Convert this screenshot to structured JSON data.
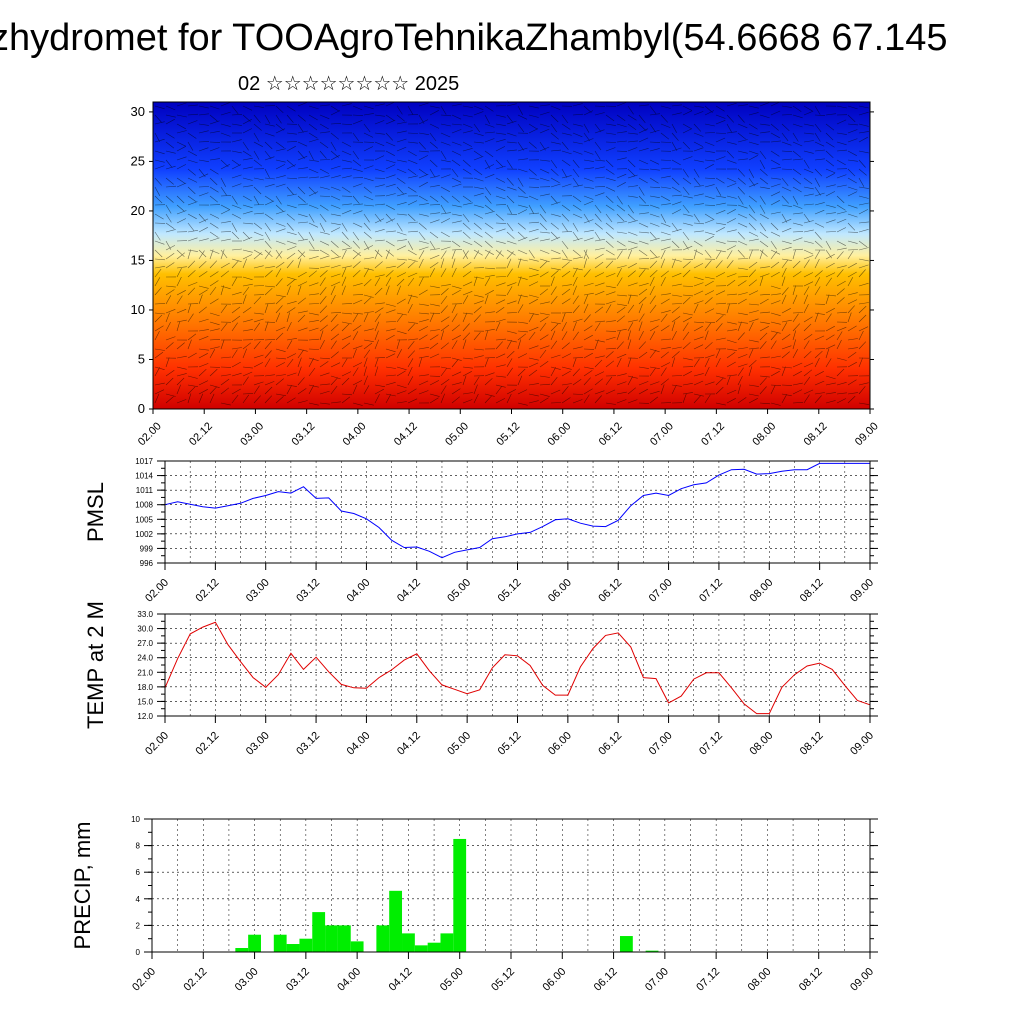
{
  "title": "zhydromet for TOOAgroTehnikaZhambyl(54.6668 67.145",
  "subtitle": "02 ☆☆☆☆☆☆☆☆ 2025",
  "time_ticks": [
    "02.00",
    "02.12",
    "03.00",
    "03.12",
    "04.00",
    "04.12",
    "05.00",
    "05.12",
    "06.00",
    "06.12",
    "07.00",
    "07.12",
    "08.00",
    "08.12",
    "09.00"
  ],
  "chart_data": [
    {
      "type": "heatmap",
      "description_panel": "vertical cross-section",
      "x_ticks": [
        "02.00",
        "02.12",
        "03.00",
        "03.12",
        "04.00",
        "04.12",
        "05.00",
        "05.12",
        "06.00",
        "06.12",
        "07.00",
        "07.12",
        "08.00",
        "08.12",
        "09.00"
      ],
      "ylim": [
        0,
        31
      ],
      "y_ticks": [
        0,
        5,
        10,
        15,
        20,
        25,
        30
      ],
      "colormap": [
        "#d00000",
        "#ff3000",
        "#ff8000",
        "#ffc000",
        "#fff0a0",
        "#c0e8ff",
        "#40a0ff",
        "#1040ff",
        "#0000c0"
      ],
      "grid": false
    },
    {
      "type": "line",
      "ylabel": "PMSL",
      "ylim": [
        996,
        1017
      ],
      "y_ticks": [
        996,
        999,
        1002,
        1005,
        1008,
        1011,
        1014,
        1017
      ],
      "x_ticks": [
        "02.00",
        "02.12",
        "03.00",
        "03.12",
        "04.00",
        "04.12",
        "05.00",
        "05.12",
        "06.00",
        "06.12",
        "07.00",
        "07.12",
        "08.00",
        "08.12",
        "09.00"
      ],
      "color": "#0000ff",
      "x": [
        0,
        0.125,
        0.25,
        0.375,
        0.5,
        0.625,
        0.75,
        0.875,
        1,
        1.125,
        1.25,
        1.375,
        1.5,
        1.625,
        1.75,
        1.875,
        2,
        2.125,
        2.25,
        2.375,
        2.5,
        2.625,
        2.75,
        2.875,
        3,
        3.125,
        3.25,
        3.375,
        3.5,
        3.625,
        3.75,
        3.875,
        4,
        4.125,
        4.25,
        4.375,
        4.5,
        4.625,
        4.75,
        4.875,
        5,
        5.125,
        5.25,
        5.375,
        5.5,
        5.625,
        5.75,
        5.875,
        6,
        6.125,
        6.25,
        6.375,
        6.5,
        6.625,
        6.75,
        6.875,
        7
      ],
      "values": [
        1008,
        1008.6,
        1008.1,
        1007.6,
        1007.3,
        1007.8,
        1008.3,
        1009.3,
        1009.9,
        1010.7,
        1010.4,
        1011.7,
        1009.3,
        1009.4,
        1006.7,
        1006.2,
        1005.1,
        1003.3,
        1000.7,
        999.2,
        999.3,
        998.4,
        997.1,
        998.2,
        998.7,
        999.2,
        1001,
        1001.4,
        1002,
        1002.3,
        1003.5,
        1004.9,
        1005.1,
        1004.2,
        1003.6,
        1003.5,
        1004.8,
        1007.8,
        1009.9,
        1010.4,
        1009.9,
        1011.3,
        1012.1,
        1012.5,
        1014.1,
        1015.2,
        1015.3,
        1014.3,
        1014.4,
        1014.9,
        1015.2,
        1015.2,
        1016.5,
        1016.5,
        1016.5,
        1016.5,
        1016.5
      ],
      "grid": true
    },
    {
      "type": "line",
      "ylabel": "TEMP at 2 M",
      "ylim": [
        12,
        33
      ],
      "y_ticks": [
        "12.0",
        "15.0",
        "18.0",
        "21.0",
        "24.0",
        "27.0",
        "30.0",
        "33.0"
      ],
      "x_ticks": [
        "02.00",
        "02.12",
        "03.00",
        "03.12",
        "04.00",
        "04.12",
        "05.00",
        "05.12",
        "06.00",
        "06.12",
        "07.00",
        "07.12",
        "08.00",
        "08.12",
        "09.00"
      ],
      "color": "#e00000",
      "x": [
        0,
        0.125,
        0.25,
        0.375,
        0.5,
        0.625,
        0.75,
        0.875,
        1,
        1.125,
        1.25,
        1.375,
        1.5,
        1.625,
        1.75,
        1.875,
        2,
        2.125,
        2.25,
        2.375,
        2.5,
        2.625,
        2.75,
        2.875,
        3,
        3.125,
        3.25,
        3.375,
        3.5,
        3.625,
        3.75,
        3.875,
        4,
        4.125,
        4.25,
        4.375,
        4.5,
        4.625,
        4.75,
        4.875,
        5,
        5.125,
        5.25,
        5.375,
        5.5,
        5.625,
        5.75,
        5.875,
        6,
        6.125,
        6.25,
        6.375,
        6.5,
        6.625,
        6.75,
        6.875,
        7
      ],
      "values": [
        17.8,
        23.8,
        28.9,
        30.3,
        31.3,
        26.7,
        23.2,
        19.9,
        17.9,
        20.5,
        24.9,
        21.6,
        24.1,
        21.1,
        18.5,
        17.8,
        17.7,
        19.9,
        21.5,
        23.5,
        24.8,
        21.3,
        18.4,
        17.5,
        16.6,
        17.4,
        21.9,
        24.6,
        24.4,
        22.4,
        18.3,
        16.3,
        16.3,
        22.1,
        25.9,
        28.6,
        29.1,
        26.2,
        19.9,
        19.7,
        14.7,
        16.1,
        19.6,
        20.9,
        20.9,
        17.8,
        14.5,
        12.5,
        12.5,
        17.9,
        20.5,
        22.3,
        22.9,
        21.6,
        18.3,
        15.2,
        14.3
      ],
      "grid": true
    },
    {
      "type": "bar",
      "ylabel": "PRECIP, mm",
      "ylim": [
        0,
        10
      ],
      "y_ticks": [
        0,
        2,
        4,
        6,
        8,
        10
      ],
      "x_ticks": [
        "02.00",
        "02.12",
        "03.00",
        "03.12",
        "04.00",
        "04.12",
        "05.00",
        "05.12",
        "06.00",
        "06.12",
        "07.00",
        "07.12",
        "08.00",
        "08.12",
        "09.00"
      ],
      "color": "#00ee00",
      "bar_width": 0.125,
      "x": [
        0.875,
        1.0,
        1.25,
        1.375,
        1.5,
        1.625,
        1.75,
        1.875,
        2.0,
        2.25,
        2.375,
        2.5,
        2.625,
        2.75,
        2.875,
        3.0,
        4.625,
        4.875
      ],
      "values": [
        0.3,
        1.3,
        1.3,
        0.6,
        1.0,
        3.0,
        2.0,
        2.0,
        0.8,
        2.0,
        4.6,
        1.4,
        0.5,
        0.7,
        1.4,
        8.5,
        1.2,
        0.1
      ],
      "grid": true
    }
  ]
}
